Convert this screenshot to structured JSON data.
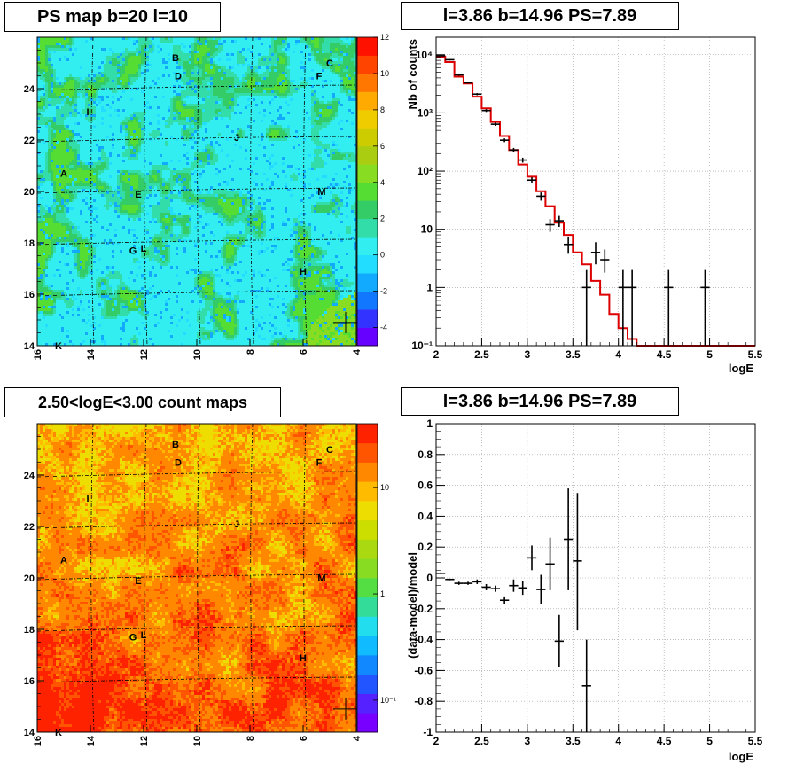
{
  "titles": {
    "map_top": "PS map b=20 l=10",
    "spec_top": "l=3.86 b=14.96 PS=7.89",
    "map_bottom": "2.50<logE<3.00 count maps",
    "spec_bottom": "l=3.86 b=14.96 PS=7.89"
  },
  "colors": {
    "map_top_base": "#33eef0",
    "map_top_green": "#55dd44",
    "map_top_blue": "#3388ff",
    "map_bottom_base": "#ff8c20",
    "map_bottom_yellow": "#ffd820",
    "map_bottom_red": "#ee4418",
    "model_line": "#dd0000",
    "data_points": "#000000",
    "marker": "#000000"
  },
  "chart_data": [
    {
      "type": "heatmap",
      "name": "ps-map",
      "xlim": [
        16,
        4
      ],
      "ylim": [
        14,
        26
      ],
      "x_ticks": [
        16,
        14,
        12,
        10,
        8,
        6,
        4
      ],
      "y_ticks": [
        14,
        16,
        18,
        20,
        22,
        24
      ],
      "colorbar": {
        "scale": "linear",
        "range": [
          -5,
          12
        ],
        "ticks": [
          -4,
          -2,
          0,
          2,
          4,
          6,
          8,
          10,
          12
        ],
        "colors": [
          "#6600ff",
          "#3333ff",
          "#1177ff",
          "#11aaff",
          "#22ddff",
          "#33eef0",
          "#33ddaa",
          "#33cc66",
          "#55dd33",
          "#88dd22",
          "#aacc11",
          "#cccc00",
          "#eecc00",
          "#ffaa00",
          "#ff7700",
          "#ff4400",
          "#ff1100"
        ]
      },
      "sources": [
        {
          "label": "A",
          "l": 15.0,
          "b": 20.7
        },
        {
          "label": "B",
          "l": 10.8,
          "b": 25.2
        },
        {
          "label": "C",
          "l": 5.0,
          "b": 25.0
        },
        {
          "label": "D",
          "l": 10.7,
          "b": 24.5
        },
        {
          "label": "E",
          "l": 12.2,
          "b": 19.9
        },
        {
          "label": "F",
          "l": 5.4,
          "b": 24.5
        },
        {
          "label": "G",
          "l": 12.4,
          "b": 17.7
        },
        {
          "label": "L",
          "l": 12.0,
          "b": 17.8
        },
        {
          "label": "H",
          "l": 6.0,
          "b": 16.9
        },
        {
          "label": "I",
          "l": 14.1,
          "b": 23.1
        },
        {
          "label": "J",
          "l": 8.5,
          "b": 22.1
        },
        {
          "label": "M",
          "l": 5.3,
          "b": 20.0
        },
        {
          "label": "K",
          "l": 15.2,
          "b": 14.0
        }
      ]
    },
    {
      "type": "line",
      "name": "spectrum",
      "xlabel": "logE",
      "ylabel": "Nb of counts",
      "xlim": [
        2,
        5.5
      ],
      "ylim": [
        0.1,
        20000
      ],
      "yscale": "log",
      "x_ticks": [
        2,
        2.5,
        3,
        3.5,
        4,
        4.5,
        5,
        5.5
      ],
      "y_ticks": [
        0.1,
        1,
        10,
        100,
        1000,
        10000
      ],
      "y_tick_labels": [
        "10⁻¹",
        "1",
        "10",
        "10²",
        "10³",
        "10⁴"
      ],
      "grid": true,
      "model_bins": {
        "edges": [
          2.0,
          2.1,
          2.2,
          2.3,
          2.4,
          2.5,
          2.6,
          2.7,
          2.8,
          2.9,
          3.0,
          3.1,
          3.2,
          3.3,
          3.4,
          3.5,
          3.6,
          3.7,
          3.8,
          3.9,
          4.0,
          4.1,
          4.2,
          4.3,
          4.4,
          4.5,
          5.5
        ],
        "values": [
          9200,
          7500,
          4200,
          3200,
          1900,
          1200,
          700,
          400,
          230,
          130,
          80,
          45,
          25,
          13,
          8,
          4,
          2.5,
          1.3,
          0.75,
          0.35,
          0.2,
          0.13,
          0.1,
          0.1,
          0.1,
          0.1
        ]
      },
      "data_points": [
        {
          "x": 2.05,
          "y": 9600,
          "ylo": 9400,
          "yhi": 9800
        },
        {
          "x": 2.15,
          "y": 8200,
          "ylo": 8000,
          "yhi": 8400
        },
        {
          "x": 2.25,
          "y": 4500,
          "ylo": 4350,
          "yhi": 4650
        },
        {
          "x": 2.35,
          "y": 3300,
          "ylo": 3180,
          "yhi": 3420
        },
        {
          "x": 2.45,
          "y": 2100,
          "ylo": 2010,
          "yhi": 2190
        },
        {
          "x": 2.55,
          "y": 1100,
          "ylo": 1040,
          "yhi": 1160
        },
        {
          "x": 2.65,
          "y": 640,
          "ylo": 600,
          "yhi": 680
        },
        {
          "x": 2.75,
          "y": 340,
          "ylo": 315,
          "yhi": 365
        },
        {
          "x": 2.85,
          "y": 230,
          "ylo": 210,
          "yhi": 250
        },
        {
          "x": 2.95,
          "y": 155,
          "ylo": 140,
          "yhi": 170
        },
        {
          "x": 3.05,
          "y": 70,
          "ylo": 62,
          "yhi": 78
        },
        {
          "x": 3.15,
          "y": 37,
          "ylo": 31,
          "yhi": 43
        },
        {
          "x": 3.25,
          "y": 12,
          "ylo": 9,
          "yhi": 15
        },
        {
          "x": 3.35,
          "y": 14,
          "ylo": 11,
          "yhi": 17
        },
        {
          "x": 3.45,
          "y": 5.5,
          "ylo": 3.8,
          "yhi": 7.5
        },
        {
          "x": 3.65,
          "y": 1,
          "ylo": 0.1,
          "yhi": 2
        },
        {
          "x": 3.75,
          "y": 4,
          "ylo": 2.5,
          "yhi": 6
        },
        {
          "x": 3.85,
          "y": 3,
          "ylo": 1.8,
          "yhi": 4.5
        },
        {
          "x": 4.05,
          "y": 1,
          "ylo": 0.1,
          "yhi": 2
        },
        {
          "x": 4.15,
          "y": 1,
          "ylo": 0.1,
          "yhi": 2
        },
        {
          "x": 4.55,
          "y": 1,
          "ylo": 0.1,
          "yhi": 2
        },
        {
          "x": 4.95,
          "y": 1,
          "ylo": 0.1,
          "yhi": 2
        }
      ]
    },
    {
      "type": "heatmap",
      "name": "count-map",
      "xlim": [
        16,
        4
      ],
      "ylim": [
        14,
        26
      ],
      "x_ticks": [
        16,
        14,
        12,
        10,
        8,
        6,
        4
      ],
      "y_ticks": [
        14,
        16,
        18,
        20,
        22,
        24
      ],
      "colorbar": {
        "scale": "log",
        "range": [
          0.05,
          40
        ],
        "ticks": [
          0.1,
          1,
          10
        ],
        "tick_labels": [
          "10⁻¹",
          "1",
          "10"
        ],
        "colors": [
          "#7700ff",
          "#5522ff",
          "#2255ff",
          "#1188ff",
          "#11bbff",
          "#22ddee",
          "#33dd99",
          "#55dd44",
          "#88dd22",
          "#aad811",
          "#ccdd00",
          "#eedd00",
          "#ffbb00",
          "#ff8800",
          "#ff5500",
          "#ff2200"
        ]
      },
      "sources": [
        {
          "label": "A",
          "l": 15.0,
          "b": 20.7
        },
        {
          "label": "B",
          "l": 10.8,
          "b": 25.2
        },
        {
          "label": "C",
          "l": 5.0,
          "b": 25.0
        },
        {
          "label": "D",
          "l": 10.7,
          "b": 24.5
        },
        {
          "label": "E",
          "l": 12.2,
          "b": 19.9
        },
        {
          "label": "F",
          "l": 5.4,
          "b": 24.5
        },
        {
          "label": "G",
          "l": 12.4,
          "b": 17.7
        },
        {
          "label": "L",
          "l": 12.0,
          "b": 17.8
        },
        {
          "label": "H",
          "l": 6.0,
          "b": 16.9
        },
        {
          "label": "I",
          "l": 14.1,
          "b": 23.1
        },
        {
          "label": "J",
          "l": 8.5,
          "b": 22.1
        },
        {
          "label": "M",
          "l": 5.3,
          "b": 20.0
        },
        {
          "label": "K",
          "l": 15.2,
          "b": 14.0
        }
      ]
    },
    {
      "type": "scatter",
      "name": "residuals",
      "xlabel": "logE",
      "ylabel": "(data-model)/model",
      "xlim": [
        2,
        5.5
      ],
      "ylim": [
        -1,
        1
      ],
      "x_ticks": [
        2,
        2.5,
        3,
        3.5,
        4,
        4.5,
        5,
        5.5
      ],
      "y_ticks": [
        -1,
        -0.8,
        -0.6,
        -0.4,
        -0.2,
        0,
        0.2,
        0.4,
        0.6,
        0.8,
        1
      ],
      "grid": true,
      "points": [
        {
          "x": 2.05,
          "y": 0.03,
          "ylo": 0.025,
          "yhi": 0.035
        },
        {
          "x": 2.15,
          "y": -0.01,
          "ylo": -0.015,
          "yhi": -0.005
        },
        {
          "x": 2.25,
          "y": -0.035,
          "ylo": -0.045,
          "yhi": -0.025
        },
        {
          "x": 2.35,
          "y": -0.035,
          "ylo": -0.045,
          "yhi": -0.025
        },
        {
          "x": 2.45,
          "y": -0.025,
          "ylo": -0.04,
          "yhi": -0.01
        },
        {
          "x": 2.55,
          "y": -0.06,
          "ylo": -0.08,
          "yhi": -0.04
        },
        {
          "x": 2.65,
          "y": -0.07,
          "ylo": -0.09,
          "yhi": -0.05
        },
        {
          "x": 2.75,
          "y": -0.145,
          "ylo": -0.17,
          "yhi": -0.12
        },
        {
          "x": 2.85,
          "y": -0.05,
          "ylo": -0.09,
          "yhi": -0.01
        },
        {
          "x": 2.95,
          "y": -0.065,
          "ylo": -0.11,
          "yhi": -0.02
        },
        {
          "x": 3.05,
          "y": 0.13,
          "ylo": 0.05,
          "yhi": 0.21
        },
        {
          "x": 3.15,
          "y": -0.075,
          "ylo": -0.17,
          "yhi": 0.02
        },
        {
          "x": 3.25,
          "y": 0.09,
          "ylo": -0.08,
          "yhi": 0.26
        },
        {
          "x": 3.35,
          "y": -0.41,
          "ylo": -0.58,
          "yhi": -0.24
        },
        {
          "x": 3.45,
          "y": 0.25,
          "ylo": -0.08,
          "yhi": 0.58
        },
        {
          "x": 3.55,
          "y": 0.11,
          "ylo": -0.34,
          "yhi": 0.55
        },
        {
          "x": 3.65,
          "y": -0.7,
          "ylo": -1.0,
          "yhi": -0.4
        }
      ]
    }
  ]
}
